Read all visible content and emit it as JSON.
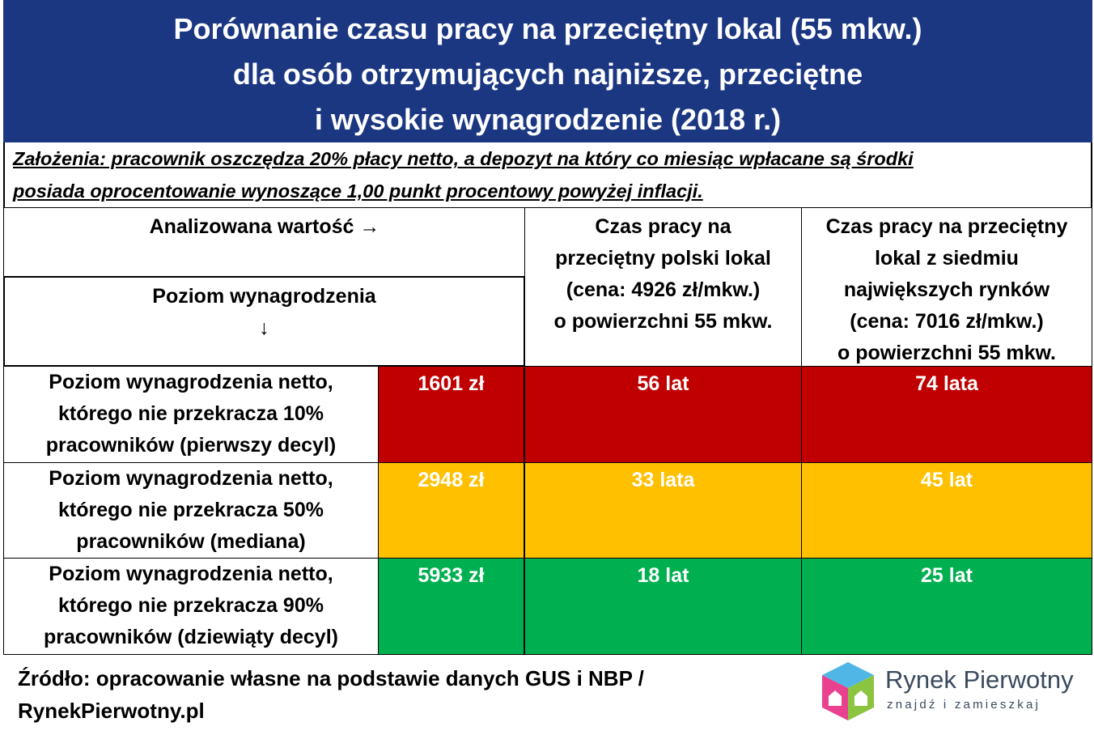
{
  "title": [
    "Porównanie czasu pracy na przeciętny lokal (55 mkw.)",
    "dla osób otrzymujących najniższe, przeciętne",
    "i wysokie wynagrodzenie (2018 r.)"
  ],
  "assumptions": [
    "Założenia: pracownik oszczędza 20% płacy netto, a depozyt na który co miesiąc wpłacane są środki",
    "posiada oprocentowanie wynoszące 1,00 punkt procentowy powyżej inflacji."
  ],
  "table": {
    "header": {
      "analyzed": "Analizowana wartość →",
      "level": "Poziom wynagrodzenia\n↓",
      "col_pl": "Czas pracy na\nprzeciętny polski lokal\n(cena: 4926 zł/mkw.)\no powierzchni 55 mkw.",
      "col_big": "Czas pracy na przeciętny\nlokal z siedmiu\nnajwiększych rynków\n(cena: 7016 zł/mkw.)\no powierzchni 55 mkw."
    },
    "rows": [
      {
        "label": "Poziom wynagrodzenia netto,\nktórego nie przekracza 10%\npracowników (pierwszy decyl)",
        "salary": "1601 zł",
        "time_pl": "56 lat",
        "time_big": "74 lata",
        "color": "#c00000"
      },
      {
        "label": "Poziom wynagrodzenia netto,\nktórego nie przekracza 50%\npracowników (mediana)",
        "salary": "2948 zł",
        "time_pl": "33 lata",
        "time_big": "45 lat",
        "color": "#ffc000"
      },
      {
        "label": "Poziom wynagrodzenia netto,\nktórego nie przekracza 90%\npracowników (dziewiąty decyl)",
        "salary": "5933 zł",
        "time_pl": "18 lat",
        "time_big": "25 lat",
        "color": "#00b050"
      }
    ]
  },
  "footer": {
    "source": [
      "Źródło: opracowanie własne na podstawie danych GUS i NBP /",
      "RynekPierwotny.pl"
    ]
  },
  "logo": {
    "name": "Rynek Pierwotny",
    "tagline": "znajdź i zamieszkaj"
  }
}
